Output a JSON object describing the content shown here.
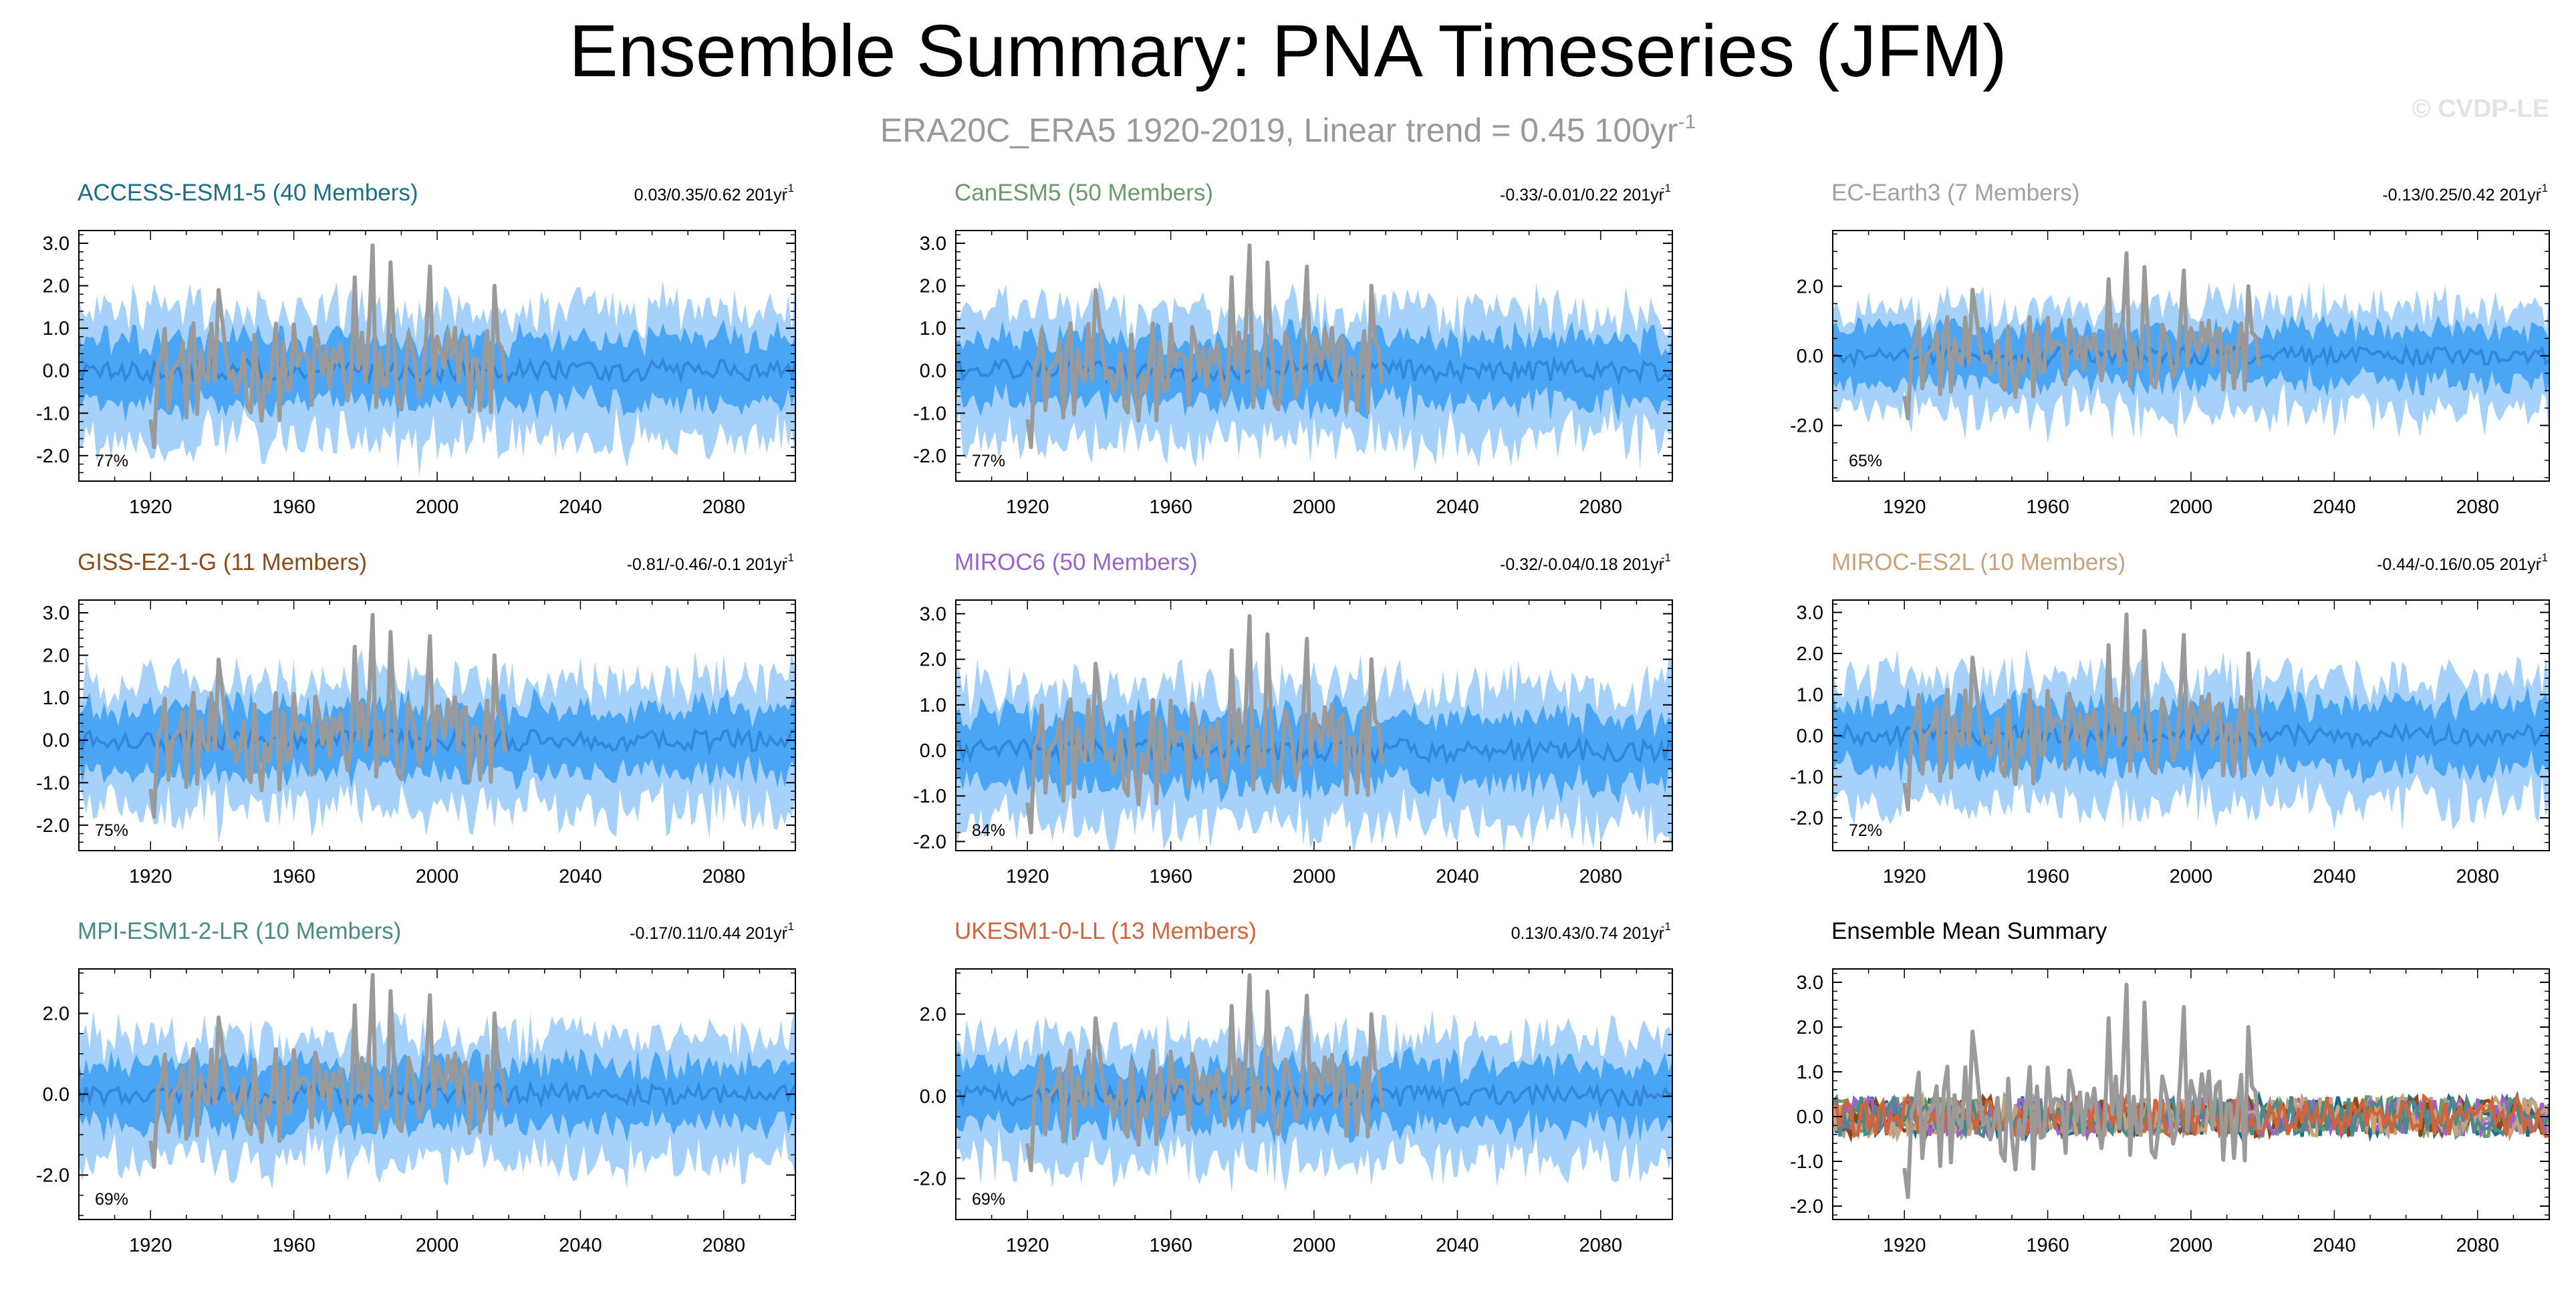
{
  "title": "Ensemble Summary: PNA Timeseries (JFM)",
  "subtitle": {
    "main": "ERA20C_ERA5 1920-2019, Linear trend = 0.45 100yr",
    "sup": "-1"
  },
  "credit": "© CVDP-LE",
  "colors": {
    "obs": "#9a9a9a",
    "spread_outer": "#a6d1fb",
    "spread_inner": "#3a9df3",
    "mean_line": "#3388dd"
  },
  "chart_data": [
    {
      "type": "line",
      "title": "ACCESS-ESM1-5 (40 Members)",
      "title_color": "#1a6f86",
      "trend_label": "0.03/0.35/0.62 201yr",
      "trend_sup": "-1",
      "percent_label": "77%",
      "ylim": [
        -2.6,
        3.3
      ],
      "yticks": [
        "3.0",
        "2.0",
        "1.0",
        "0.0",
        "-1.0",
        "-2.0"
      ],
      "xticks": [
        "1920",
        "1960",
        "2000",
        "2040",
        "2080"
      ],
      "xlim": [
        1900,
        2100
      ]
    },
    {
      "type": "line",
      "title": "CanESM5 (50 Members)",
      "title_color": "#6a9a6a",
      "trend_label": "-0.33/-0.01/0.22 201yr",
      "trend_sup": "-1",
      "percent_label": "77%",
      "ylim": [
        -2.6,
        3.3
      ],
      "yticks": [
        "3.0",
        "2.0",
        "1.0",
        "0.0",
        "-1.0",
        "-2.0"
      ],
      "xticks": [
        "1920",
        "1960",
        "2000",
        "2040",
        "2080"
      ],
      "xlim": [
        1900,
        2100
      ]
    },
    {
      "type": "line",
      "title": "EC-Earth3 (7 Members)",
      "title_color": "#a0a0a0",
      "trend_label": "-0.13/0.25/0.42 201yr",
      "trend_sup": "-1",
      "percent_label": "65%",
      "ylim": [
        -3.6,
        3.6
      ],
      "yticks": [
        "2.0",
        "0.0",
        "-2.0"
      ],
      "xticks": [
        "1920",
        "1960",
        "2000",
        "2040",
        "2080"
      ],
      "xlim": [
        1900,
        2100
      ]
    },
    {
      "type": "line",
      "title": "GISS-E2-1-G (11 Members)",
      "title_color": "#8b4a1c",
      "trend_label": "-0.81/-0.46/-0.1 201yr",
      "trend_sup": "-1",
      "percent_label": "75%",
      "ylim": [
        -2.6,
        3.3
      ],
      "yticks": [
        "3.0",
        "2.0",
        "1.0",
        "0.0",
        "-1.0",
        "-2.0"
      ],
      "xticks": [
        "1920",
        "1960",
        "2000",
        "2040",
        "2080"
      ],
      "xlim": [
        1900,
        2100
      ]
    },
    {
      "type": "line",
      "title": "MIROC6 (50 Members)",
      "title_color": "#9a63cc",
      "trend_label": "-0.32/-0.04/0.18 201yr",
      "trend_sup": "-1",
      "percent_label": "84%",
      "ylim": [
        -2.2,
        3.3
      ],
      "yticks": [
        "3.0",
        "2.0",
        "1.0",
        "0.0",
        "-1.0",
        "-2.0"
      ],
      "xticks": [
        "1920",
        "1960",
        "2000",
        "2040",
        "2080"
      ],
      "xlim": [
        1900,
        2100
      ]
    },
    {
      "type": "line",
      "title": "MIROC-ES2L (10 Members)",
      "title_color": "#c8a27a",
      "trend_label": "-0.44/-0.16/0.05 201yr",
      "trend_sup": "-1",
      "percent_label": "72%",
      "ylim": [
        -2.8,
        3.3
      ],
      "yticks": [
        "3.0",
        "2.0",
        "1.0",
        "0.0",
        "-1.0",
        "-2.0"
      ],
      "xticks": [
        "1920",
        "1960",
        "2000",
        "2040",
        "2080"
      ],
      "xlim": [
        1900,
        2100
      ]
    },
    {
      "type": "line",
      "title": "MPI-ESM1-2-LR (10 Members)",
      "title_color": "#4a8a8a",
      "trend_label": "-0.17/0.11/0.44 201yr",
      "trend_sup": "-1",
      "percent_label": "69%",
      "ylim": [
        -3.1,
        3.1
      ],
      "yticks": [
        "2.0",
        "0.0",
        "-2.0"
      ],
      "xticks": [
        "1920",
        "1960",
        "2000",
        "2040",
        "2080"
      ],
      "xlim": [
        1900,
        2100
      ]
    },
    {
      "type": "line",
      "title": "UKESM1-0-LL (13 Members)",
      "title_color": "#d0643c",
      "trend_label": "0.13/0.43/0.74 201yr",
      "trend_sup": "-1",
      "percent_label": "69%",
      "ylim": [
        -3.0,
        3.1
      ],
      "yticks": [
        "2.0",
        "0.0",
        "-2.0"
      ],
      "xticks": [
        "1920",
        "1960",
        "2000",
        "2040",
        "2080"
      ],
      "xlim": [
        1900,
        2100
      ]
    },
    {
      "type": "line",
      "title": "Ensemble Mean Summary",
      "title_color": "#000000",
      "trend_label": "",
      "trend_sup": "",
      "percent_label": "",
      "ylim": [
        -2.3,
        3.3
      ],
      "yticks": [
        "3.0",
        "2.0",
        "1.0",
        "0.0",
        "-1.0",
        "-2.0"
      ],
      "xticks": [
        "1920",
        "1960",
        "2000",
        "2040",
        "2080"
      ],
      "xlim": [
        1900,
        2100
      ],
      "series_colors": [
        "#1a6f86",
        "#6a9a6a",
        "#a0a0a0",
        "#8b4a1c",
        "#9a63cc",
        "#c8a27a",
        "#4a8a8a",
        "#d0643c"
      ]
    }
  ]
}
